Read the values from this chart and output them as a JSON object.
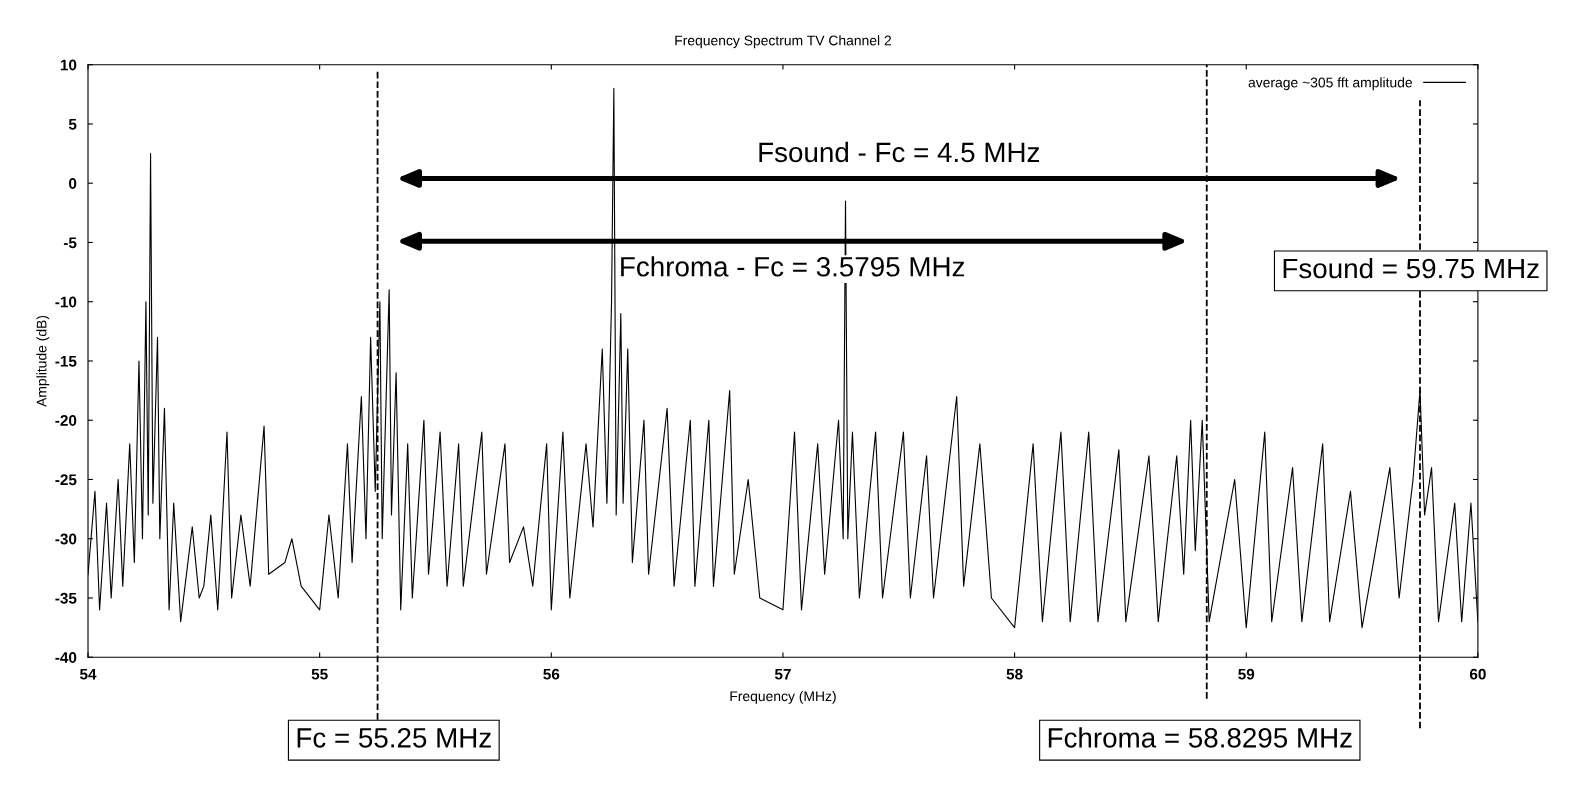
{
  "chart_data": {
    "type": "line",
    "title": "Frequency Spectrum TV Channel 2",
    "xlabel": "Frequency (MHz)",
    "ylabel": "Amplitude (dB)",
    "x": [
      54.0,
      54.03,
      54.05,
      54.08,
      54.1,
      54.13,
      54.15,
      54.18,
      54.2,
      54.22,
      54.235,
      54.25,
      54.26,
      54.27,
      54.28,
      54.3,
      54.31,
      54.33,
      54.35,
      54.37,
      54.4,
      54.45,
      54.48,
      54.5,
      54.53,
      54.56,
      54.6,
      54.62,
      54.66,
      54.7,
      54.76,
      54.78,
      54.85,
      54.88,
      54.92,
      55.0,
      55.04,
      55.08,
      55.12,
      55.14,
      55.18,
      55.2,
      55.22,
      55.24,
      55.26,
      55.27,
      55.3,
      55.31,
      55.33,
      55.35,
      55.38,
      55.4,
      55.45,
      55.47,
      55.52,
      55.55,
      55.6,
      55.62,
      55.7,
      55.72,
      55.8,
      55.82,
      55.88,
      55.92,
      55.98,
      56.0,
      56.05,
      56.08,
      56.15,
      56.18,
      56.22,
      56.24,
      56.26,
      56.27,
      56.28,
      56.3,
      56.31,
      56.33,
      56.35,
      56.4,
      56.42,
      56.5,
      56.53,
      56.6,
      56.62,
      56.68,
      56.7,
      56.77,
      56.79,
      56.85,
      56.9,
      57.0,
      57.05,
      57.08,
      57.15,
      57.18,
      57.24,
      57.26,
      57.27,
      57.28,
      57.3,
      57.33,
      57.4,
      57.43,
      57.52,
      57.55,
      57.62,
      57.65,
      57.75,
      57.78,
      57.85,
      57.9,
      58.0,
      58.08,
      58.12,
      58.2,
      58.24,
      58.32,
      58.36,
      58.45,
      58.48,
      58.58,
      58.62,
      58.7,
      58.73,
      58.76,
      58.78,
      58.81,
      58.84,
      58.95,
      59.0,
      59.08,
      59.11,
      59.2,
      59.24,
      59.33,
      59.36,
      59.45,
      59.5,
      59.62,
      59.66,
      59.72,
      59.75,
      59.77,
      59.8,
      59.83,
      59.9,
      59.93,
      59.97,
      60.0
    ],
    "series": [
      {
        "name": "average ~305 fft amplitude",
        "color": "#000000",
        "values": [
          -33,
          -26,
          -36,
          -27,
          -35,
          -25,
          -34,
          -22,
          -32,
          -15,
          -30,
          -10,
          -28,
          2.5,
          -27,
          -13,
          -30,
          -19,
          -36,
          -27,
          -37,
          -29,
          -35,
          -34,
          -28,
          -36,
          -21,
          -35,
          -28,
          -34,
          -20.5,
          -33,
          -32,
          -30,
          -34,
          -36,
          -28,
          -35,
          -22,
          -32,
          -18,
          -30,
          -13,
          -26,
          -10,
          -30,
          -9,
          -28,
          -16,
          -36,
          -22,
          -35,
          -20,
          -33,
          -21,
          -34,
          -22,
          -34,
          -21,
          -33,
          -22,
          -32,
          -29,
          -34,
          -22,
          -36,
          -21,
          -35,
          -22,
          -29,
          -14,
          -27,
          -10,
          8,
          -28,
          -11,
          -27,
          -14,
          -32,
          -20,
          -33,
          -19,
          -34,
          -20,
          -34,
          -20,
          -34,
          -17.5,
          -33,
          -25,
          -35,
          -36,
          -21,
          -36,
          -22,
          -33,
          -20,
          -30,
          -1.5,
          -30,
          -21,
          -35,
          -21,
          -35,
          -21,
          -35,
          -23,
          -35,
          -18,
          -34,
          -22,
          -35,
          -37.5,
          -22,
          -37,
          -21,
          -37,
          -21,
          -37,
          -22.5,
          -37,
          -23,
          -37,
          -23,
          -33,
          -20,
          -31,
          -20,
          -37,
          -25,
          -37.5,
          -21,
          -37,
          -24,
          -37,
          -22,
          -37,
          -26,
          -37.5,
          -24,
          -35,
          -25,
          -17.5,
          -28,
          -24,
          -37,
          -27,
          -37,
          -27,
          -37
        ]
      }
    ],
    "xlim": [
      54,
      60
    ],
    "xticks": [
      54,
      55,
      56,
      57,
      58,
      59,
      60
    ],
    "ylim": [
      -40,
      10
    ],
    "yticks": [
      -40,
      -35,
      -30,
      -25,
      -20,
      -15,
      -10,
      -5,
      0,
      5,
      10
    ],
    "legend": "top right",
    "grid": false,
    "ref_lines": [
      {
        "axis": "x",
        "value": 55.25,
        "label": "Fc = 55.25 MHz",
        "color": "#000000",
        "line_style": "dashed"
      },
      {
        "axis": "x",
        "value": 58.8295,
        "label": "Fchroma = 58.8295 MHz",
        "color": "#000000",
        "line_style": "dashed"
      },
      {
        "axis": "x",
        "value": 59.75,
        "label": "Fsound = 59.75 MHz",
        "color": "#000000",
        "line_style": "dashed"
      }
    ],
    "annotations": [
      "Fsound - Fc = 4.5 MHz",
      "Fchroma - Fc = 3.5795 MHz"
    ]
  }
}
